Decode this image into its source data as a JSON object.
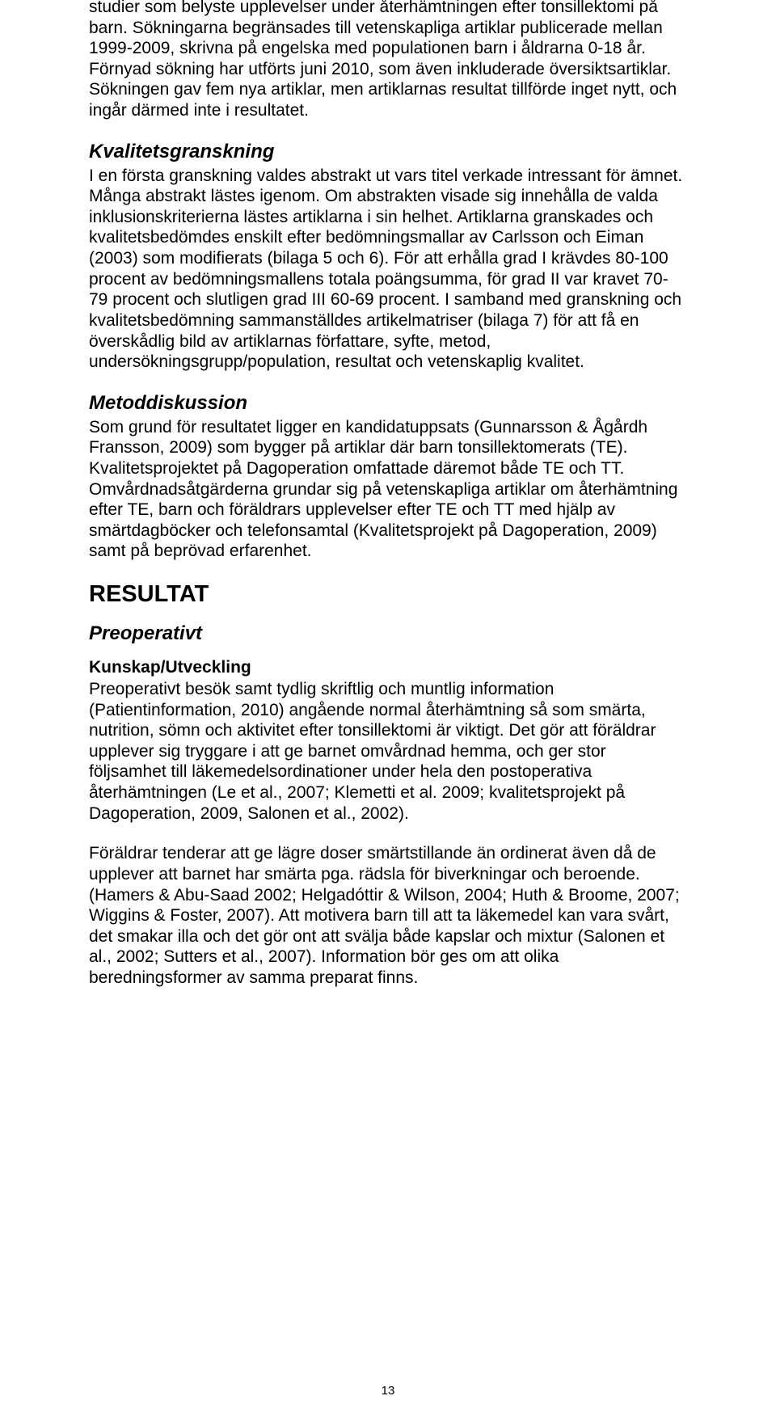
{
  "para_intro": "studier som belyste upplevelser under återhämtningen efter tonsillektomi på barn. Sökningarna begränsades till vetenskapliga artiklar publicerade mellan 1999-2009, skrivna på engelska med populationen barn i åldrarna 0-18 år. Förnyad sökning har utförts juni 2010, som även inkluderade översiktsartiklar. Sökningen gav fem nya artiklar, men artiklarnas resultat tillförde inget nytt, och ingår därmed inte i resultatet.",
  "kvalitet_head": "Kvalitetsgranskning",
  "kvalitet_body": "I en första granskning valdes abstrakt ut vars titel verkade intressant för ämnet. Många abstrakt lästes igenom. Om abstrakten visade sig innehålla de valda inklusionskriterierna lästes artiklarna i sin helhet. Artiklarna granskades och kvalitetsbedömdes enskilt efter bedömningsmallar av Carlsson och Eiman (2003) som modifierats (bilaga 5 och 6). För att erhålla grad I krävdes 80-100 procent av bedömningsmallens totala poängsumma, för grad II var kravet 70-79 procent och slutligen grad III 60-69 procent. I samband med granskning och kvalitetsbedömning sammanställdes artikelmatriser (bilaga 7) för att få en överskådlig bild av artiklarnas författare, syfte, metod, undersökningsgrupp/population, resultat och vetenskaplig kvalitet.",
  "metod_head": "Metoddiskussion",
  "metod_body": "Som grund för resultatet ligger en kandidatuppsats (Gunnarsson & Ågårdh Fransson, 2009) som bygger på artiklar där barn tonsillektomerats (TE). Kvalitetsprojektet på Dagoperation omfattade däremot både TE och TT. Omvårdnadsåtgärderna grundar sig på vetenskapliga artiklar om återhämtning efter TE, barn och föräldrars upplevelser efter TE och TT med hjälp av smärtdagböcker och telefonsamtal (Kvalitetsprojekt på Dagoperation, 2009) samt på beprövad erfarenhet.",
  "resultat_h1": "RESULTAT",
  "preop_h2": "Preoperativt",
  "kunskap_h3": "Kunskap/Utveckling",
  "kunskap_body_a": "Preoperativt besök samt tydlig skriftlig och muntlig information (Patientinformation, 2010) angående normal återhämtning så som smärta, nutrition, sömn och aktivitet efter tonsillektomi är viktigt. Det gör att föräldrar upplever sig tryggare i att ge barnet omvårdnad hemma, och ger stor följsamhet till läkemedelsordinationer under hela den postoperativa återhämtningen (Le et al., 2007; Klemetti et al. 2009; kvalitetsprojekt på Dagoperation, 2009, Salonen et al., 2002).",
  "kunskap_body_b": "Föräldrar tenderar att ge lägre doser smärtstillande än ordinerat även då de upplever att barnet har smärta pga. rädsla för biverkningar och beroende. (Hamers & Abu-Saad 2002; Helgadóttir & Wilson, 2004; Huth & Broome, 2007; Wiggins & Foster, 2007).  Att motivera barn till att ta läkemedel kan vara svårt, det smakar illa och det gör ont att svälja både kapslar och mixtur (Salonen et al., 2002; Sutters et al., 2007). Information bör ges om att olika beredningsformer av samma preparat finns.",
  "page_number": "13"
}
